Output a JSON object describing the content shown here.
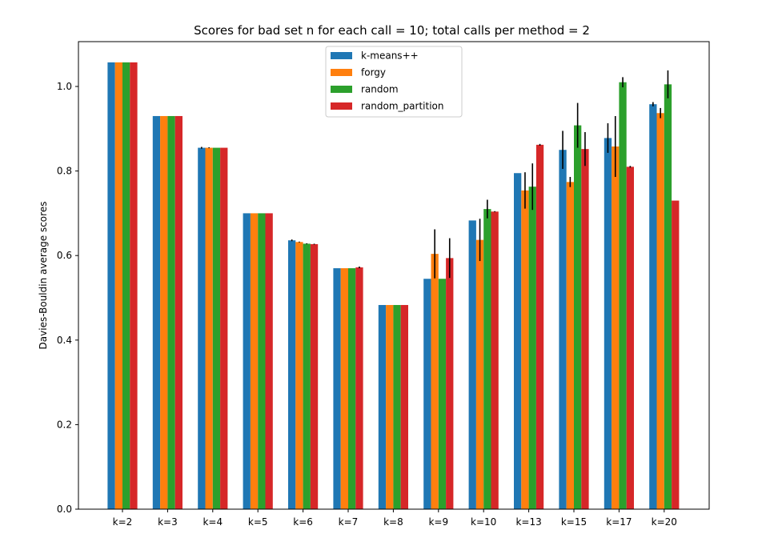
{
  "chart_data": {
    "type": "bar",
    "title": "Scores for bad set n for each call = 10; total calls per method = 2",
    "xlabel": "",
    "ylabel": "Davies-Bouldin average scores",
    "ylim": [
      0,
      1.1
    ],
    "yticks": [
      0.0,
      0.2,
      0.4,
      0.6,
      0.8,
      1.0
    ],
    "ytick_labels": [
      "0.0",
      "0.2",
      "0.4",
      "0.6",
      "0.8",
      "1.0"
    ],
    "categories": [
      "k=2",
      "k=3",
      "k=4",
      "k=5",
      "k=6",
      "k=7",
      "k=8",
      "k=9",
      "k=10",
      "k=13",
      "k=15",
      "k=17",
      "k=20"
    ],
    "legend_position": "top-center",
    "series": [
      {
        "name": "k-means++",
        "color": "#1f77b4",
        "values": [
          1.057,
          0.93,
          0.855,
          0.7,
          0.636,
          0.57,
          0.483,
          0.545,
          0.683,
          0.795,
          0.85,
          0.878,
          0.958
        ],
        "errors": [
          0,
          0,
          0.002,
          0,
          0.002,
          0,
          0,
          0,
          0,
          0,
          0.045,
          0.035,
          0.005
        ]
      },
      {
        "name": "forgy",
        "color": "#ff7f0e",
        "values": [
          1.057,
          0.93,
          0.855,
          0.7,
          0.632,
          0.57,
          0.483,
          0.604,
          0.637,
          0.754,
          0.774,
          0.858,
          0.937
        ],
        "errors": [
          0,
          0,
          0.001,
          0,
          0.001,
          0,
          0,
          0.058,
          0.05,
          0.043,
          0.012,
          0.072,
          0.012
        ]
      },
      {
        "name": "random",
        "color": "#2ca02c",
        "values": [
          1.057,
          0.93,
          0.855,
          0.7,
          0.628,
          0.57,
          0.483,
          0.545,
          0.71,
          0.763,
          0.908,
          1.01,
          1.005
        ],
        "errors": [
          0,
          0,
          0,
          0,
          0.001,
          0,
          0,
          0,
          0.022,
          0.055,
          0.053,
          0.012,
          0.033
        ]
      },
      {
        "name": "random_partition",
        "color": "#d62728",
        "values": [
          1.057,
          0.93,
          0.855,
          0.7,
          0.627,
          0.572,
          0.483,
          0.594,
          0.704,
          0.862,
          0.852,
          0.81,
          0.73
        ],
        "errors": [
          0,
          0,
          0,
          0,
          0.001,
          0.002,
          0,
          0.047,
          0.001,
          0.002,
          0.04,
          0.002,
          0
        ]
      }
    ]
  }
}
